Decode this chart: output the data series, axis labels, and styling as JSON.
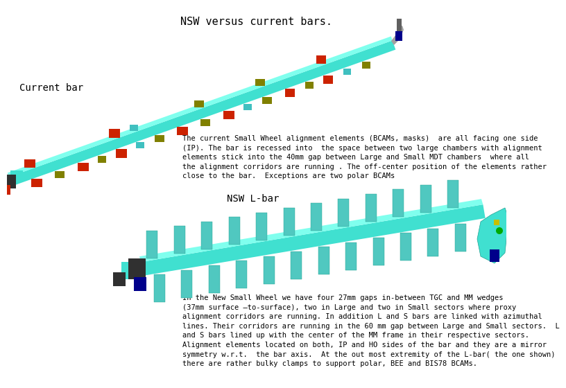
{
  "title": "NSW versus current bars.",
  "bg_color": "#ffffff",
  "current_bar_label": "Current bar",
  "nsw_label": "NSW L-bar",
  "text1": "The current Small Wheel alignment elements (BCAMs, masks)  are all facing one side\n(IP). The bar is recessed into  the space between two large chambers with alignment\nelements stick into the 40mm gap between Large and Small MDT chambers  where all\nthe alignment corridors are running . The off-center position of the elements rather\nclose to the bar.  Exceptions are two polar BCAMs",
  "text2": "In the New Small Wheel we have four 27mm gaps in-between TGC and MM wedges\n(37mm surface –to-surface), two in Large and two in Small sectors where proxy\nalignment corridors are running. In addition L and S bars are linked with azimuthal\nlines. Their corridors are running in the 60 mm gap between Large and Small sectors.  L\nand S bars lined up with the center of the MM frame in their respective sectors.\nAlignment elements located on both, IP and HO sides of the bar and they are a mirror\nsymmetry w.r.t.  the bar axis.  At the out most extremity of the L-bar( the one shown)\nthere are rather bulky clamps to support polar, BEE and BIS78 BCAMs.",
  "teal": "#40E0D0",
  "teal_light": "#80FFEE",
  "teal_dark": "#20A090",
  "teal_mid": "#50C8C0",
  "red": "#CC2200",
  "olive": "#808000",
  "dark_blue": "#00008B",
  "blue": "#1050CC",
  "gray": "#A0A0A0",
  "gray_dark": "#606060",
  "black": "#111111",
  "green": "#00AA00",
  "yellow": "#C8C000"
}
